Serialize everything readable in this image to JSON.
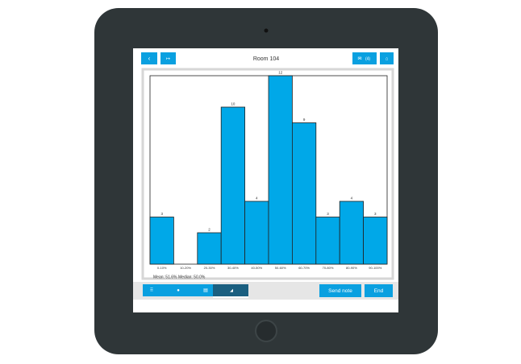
{
  "header": {
    "title": "Room 104",
    "badge": "(4)"
  },
  "chart_data": {
    "type": "bar",
    "categories": [
      "0-10%",
      "10-20%",
      "20-30%",
      "30-40%",
      "40-50%",
      "50-60%",
      "60-70%",
      "70-80%",
      "80-90%",
      "90-100%"
    ],
    "values": [
      3,
      0,
      2,
      10,
      4,
      12,
      9,
      3,
      4,
      3
    ],
    "color": "#00a8e8",
    "ylim": [
      0,
      12
    ]
  },
  "stats": {
    "mean": "Mean: 51.6%",
    "median": "Median: 50.0%"
  },
  "buttons": {
    "send": "Send note",
    "end": "End"
  }
}
